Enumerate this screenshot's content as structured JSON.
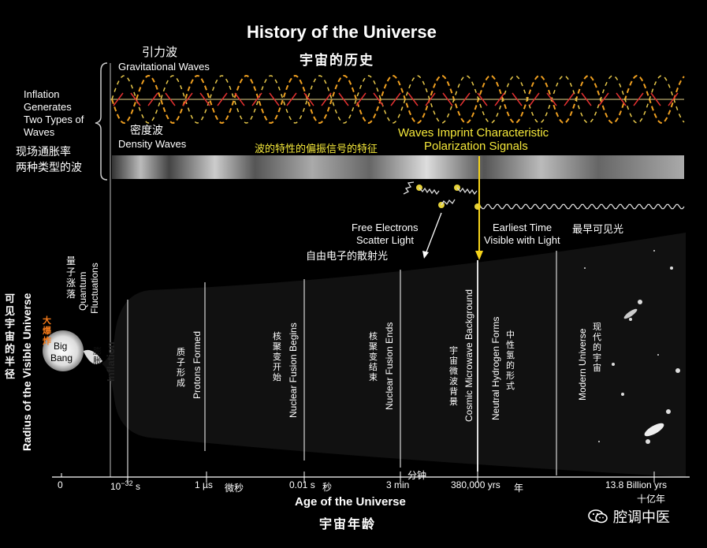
{
  "title": {
    "en": "History of the Universe",
    "cn": "宇宙的历史"
  },
  "gravitational_waves": {
    "cn": "引力波",
    "en": "Gravitational Waves"
  },
  "density_waves": {
    "cn": "密度波",
    "en": "Density Waves"
  },
  "inflation_generates": {
    "line1": "Inflation",
    "line2": "Generates",
    "line3": "Two Types of",
    "line4": "Waves",
    "cn1": "现场通胀率",
    "cn2": "两种类型的波"
  },
  "polarization": {
    "en1": "Waves Imprint Characteristic",
    "en2": "Polarization Signals",
    "cn": "波的特性的偏振信号的特征"
  },
  "free_electrons": {
    "en1": "Free Electrons",
    "en2": "Scatter Light",
    "cn": "自由电子的散射光"
  },
  "earliest_time": {
    "en1": "Earliest Time",
    "cn": "最早可见光",
    "en2": "Visible with Light"
  },
  "y_axis": {
    "en": "Radius of the Visible Universe",
    "cn": "可见宇宙的半径"
  },
  "quantum": {
    "cn": "量子涨落",
    "en1": "Quantum",
    "en2": "Fluctuations"
  },
  "big_bang": {
    "cn": "大爆炸",
    "en1": "Big",
    "en2": "Bang"
  },
  "inflation_band": {
    "cn": "膨胀",
    "en": "Inflation"
  },
  "bands": [
    {
      "cn": "质子形成",
      "en": "Protons Formed"
    },
    {
      "cn": "核聚变开始",
      "en": "Nuclear Fusion Begins"
    },
    {
      "cn": "核聚变结束",
      "en": "Nuclear Fusion Ends"
    },
    {
      "cn": "宇宙微波背景",
      "en": "Cosmic Microwave Background"
    },
    {
      "cn": "中性氢的形式",
      "en": "Neutral Hydrogen Forms"
    },
    {
      "cn": "现代的宇宙",
      "en": "Modern Universe"
    }
  ],
  "ticks": {
    "t0": "0",
    "t1_base": "10",
    "t1_exp": "−32",
    "t1_unit": "s",
    "t2": "1 µs",
    "t2_cn": "微秒",
    "t3": "0.01 s",
    "t3_cn": "秒",
    "t4": "3 min",
    "t4_cn": "分钟",
    "t5": "380,000 yrs",
    "t5_cn": "年",
    "t6": "13.8 Billion yrs",
    "t6_cn": "十亿年"
  },
  "x_axis": {
    "en": "Age of the Universe",
    "cn": "宇宙年龄"
  },
  "watermark": "腔调中医",
  "colors": {
    "yellow_text": "#f5e83a",
    "arrow": "#f5d31a"
  }
}
